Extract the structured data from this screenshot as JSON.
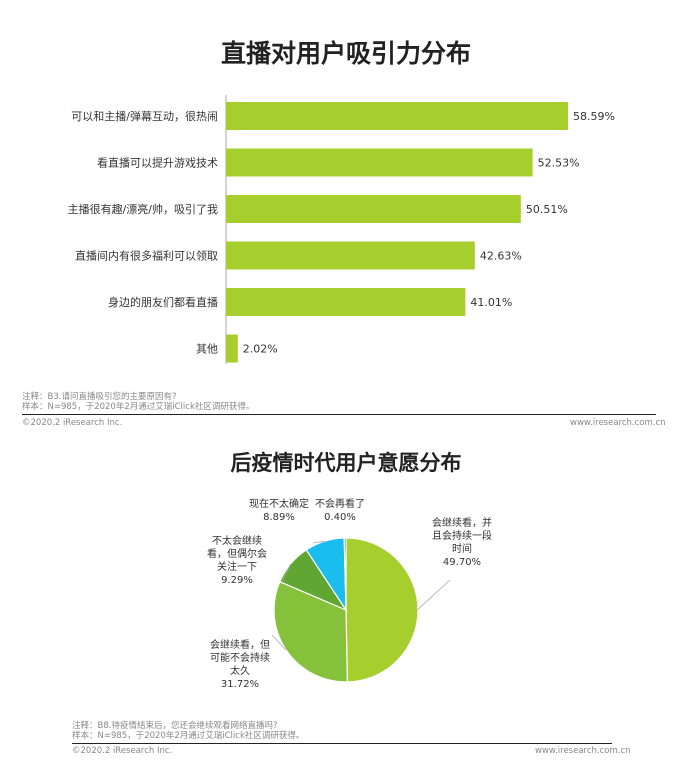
{
  "chart_data": [
    {
      "type": "bar",
      "orientation": "horizontal",
      "title": "直播对用户吸引力分布",
      "categories": [
        "可以和主播/弹幕互动，很热闹",
        "看直播可以提升游戏技术",
        "主播很有趣/漂亮/帅，吸引了我",
        "直播间内有很多福利可以领取",
        "身边的朋友们都看直播",
        "其他"
      ],
      "values": [
        58.59,
        52.53,
        50.51,
        42.63,
        41.01,
        2.02
      ],
      "value_labels": [
        "58.59%",
        "52.53%",
        "50.51%",
        "42.63%",
        "41.01%",
        "2.02%"
      ],
      "color": "#a6cf2e",
      "xlim": [
        0,
        70
      ],
      "grid": false
    },
    {
      "type": "pie",
      "title": "后疫情时代用户意愿分布",
      "slices": [
        {
          "label": "会继续看，并且会持续一段时间",
          "lines": [
            "会继续看，并",
            "且会持续一段",
            "时间"
          ],
          "value": 49.7,
          "value_label": "49.70%",
          "color": "#a6cf2e"
        },
        {
          "label": "会继续看，但可能不会持续太久",
          "lines": [
            "会继续看，但",
            "可能不会持续",
            "太久"
          ],
          "value": 31.72,
          "value_label": "31.72%",
          "color": "#86c13c"
        },
        {
          "label": "不太会继续看，但偶尔会关注一下",
          "lines": [
            "不太会继续",
            "看，但偶尔会",
            "关注一下"
          ],
          "value": 9.29,
          "value_label": "9.29%",
          "color": "#5fa632"
        },
        {
          "label": "现在不太确定",
          "lines": [
            "现在不太确定"
          ],
          "value": 8.89,
          "value_label": "8.89%",
          "color": "#1bbcee"
        },
        {
          "label": "不会再看了",
          "lines": [
            "不会再看了"
          ],
          "value": 0.4,
          "value_label": "0.40%",
          "color": "#0e5b8c"
        }
      ]
    }
  ],
  "notes": {
    "chart1_note1": "注释：B3.请问直播吸引您的主要原因有?",
    "chart1_note2": "样本：N=985，于2020年2月通过艾瑞iClick社区调研获得。",
    "chart2_note1": "注释：B8.待疫情结束后，您还会继续观看网络直播吗?",
    "chart2_note2": "样本：N=985，于2020年2月通过艾瑞iClick社区调研获得。"
  },
  "footer": {
    "copyright": "©2020.2 iResearch Inc.",
    "website": "www.iresearch.com.cn"
  },
  "colors": {
    "bar": "#a6cf2e",
    "axis": "#aaaaaa",
    "rule": "#222222"
  }
}
